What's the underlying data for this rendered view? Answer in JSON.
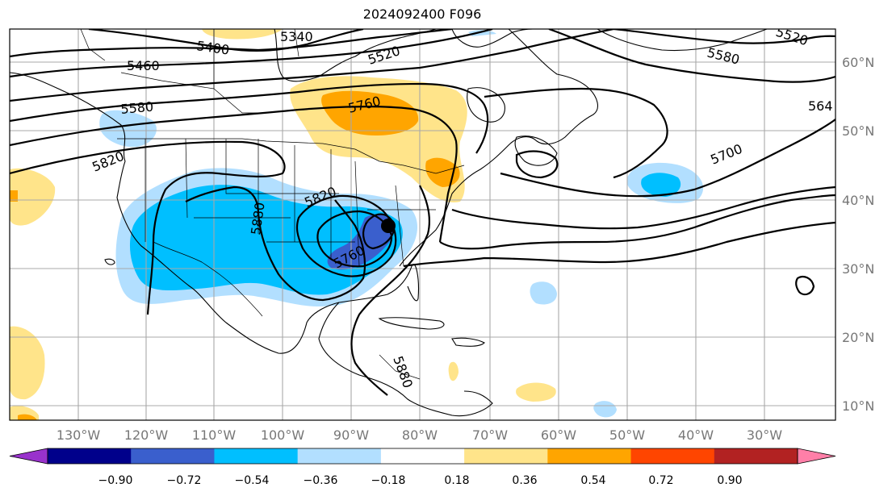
{
  "title": "2024092400 F096",
  "longitude_labels": [
    "130°W",
    "120°W",
    "110°W",
    "100°W",
    "90°W",
    "80°W",
    "70°W",
    "60°W",
    "50°W",
    "40°W",
    "30°W"
  ],
  "latitude_labels": [
    "60°N",
    "50°N",
    "40°N",
    "30°N",
    "20°N",
    "10°N"
  ],
  "colorbar": {
    "tick_labels": [
      "−0.90",
      "−0.72",
      "−0.54",
      "−0.36",
      "−0.18",
      "0.18",
      "0.36",
      "0.54",
      "0.72",
      "0.90"
    ],
    "colors": [
      "#9932cc",
      "#00008b",
      "#3a5fcd",
      "#00bfff",
      "#b2dfff",
      "#ffffff",
      "#ffe48a",
      "#ffa500",
      "#ff4500",
      "#b22222",
      "#ff7fa8"
    ]
  },
  "contour_labels": [
    {
      "id": "c5340",
      "text": "5340"
    },
    {
      "id": "c5400",
      "text": "5400"
    },
    {
      "id": "c5460",
      "text": "5460"
    },
    {
      "id": "c5520a",
      "text": "5520"
    },
    {
      "id": "c5520b",
      "text": "5520"
    },
    {
      "id": "c5580a",
      "text": "5580"
    },
    {
      "id": "c5580b",
      "text": "5580"
    },
    {
      "id": "c564",
      "text": "564"
    },
    {
      "id": "c5760a",
      "text": "5760"
    },
    {
      "id": "c5700",
      "text": "5700"
    },
    {
      "id": "c5820a",
      "text": "5820"
    },
    {
      "id": "c5820b",
      "text": "5820"
    },
    {
      "id": "c5880",
      "text": "5880"
    },
    {
      "id": "c5760b",
      "text": "5760"
    },
    {
      "id": "c5880b",
      "text": "5880"
    }
  ],
  "marker": {
    "name": "low-center-marker"
  }
}
